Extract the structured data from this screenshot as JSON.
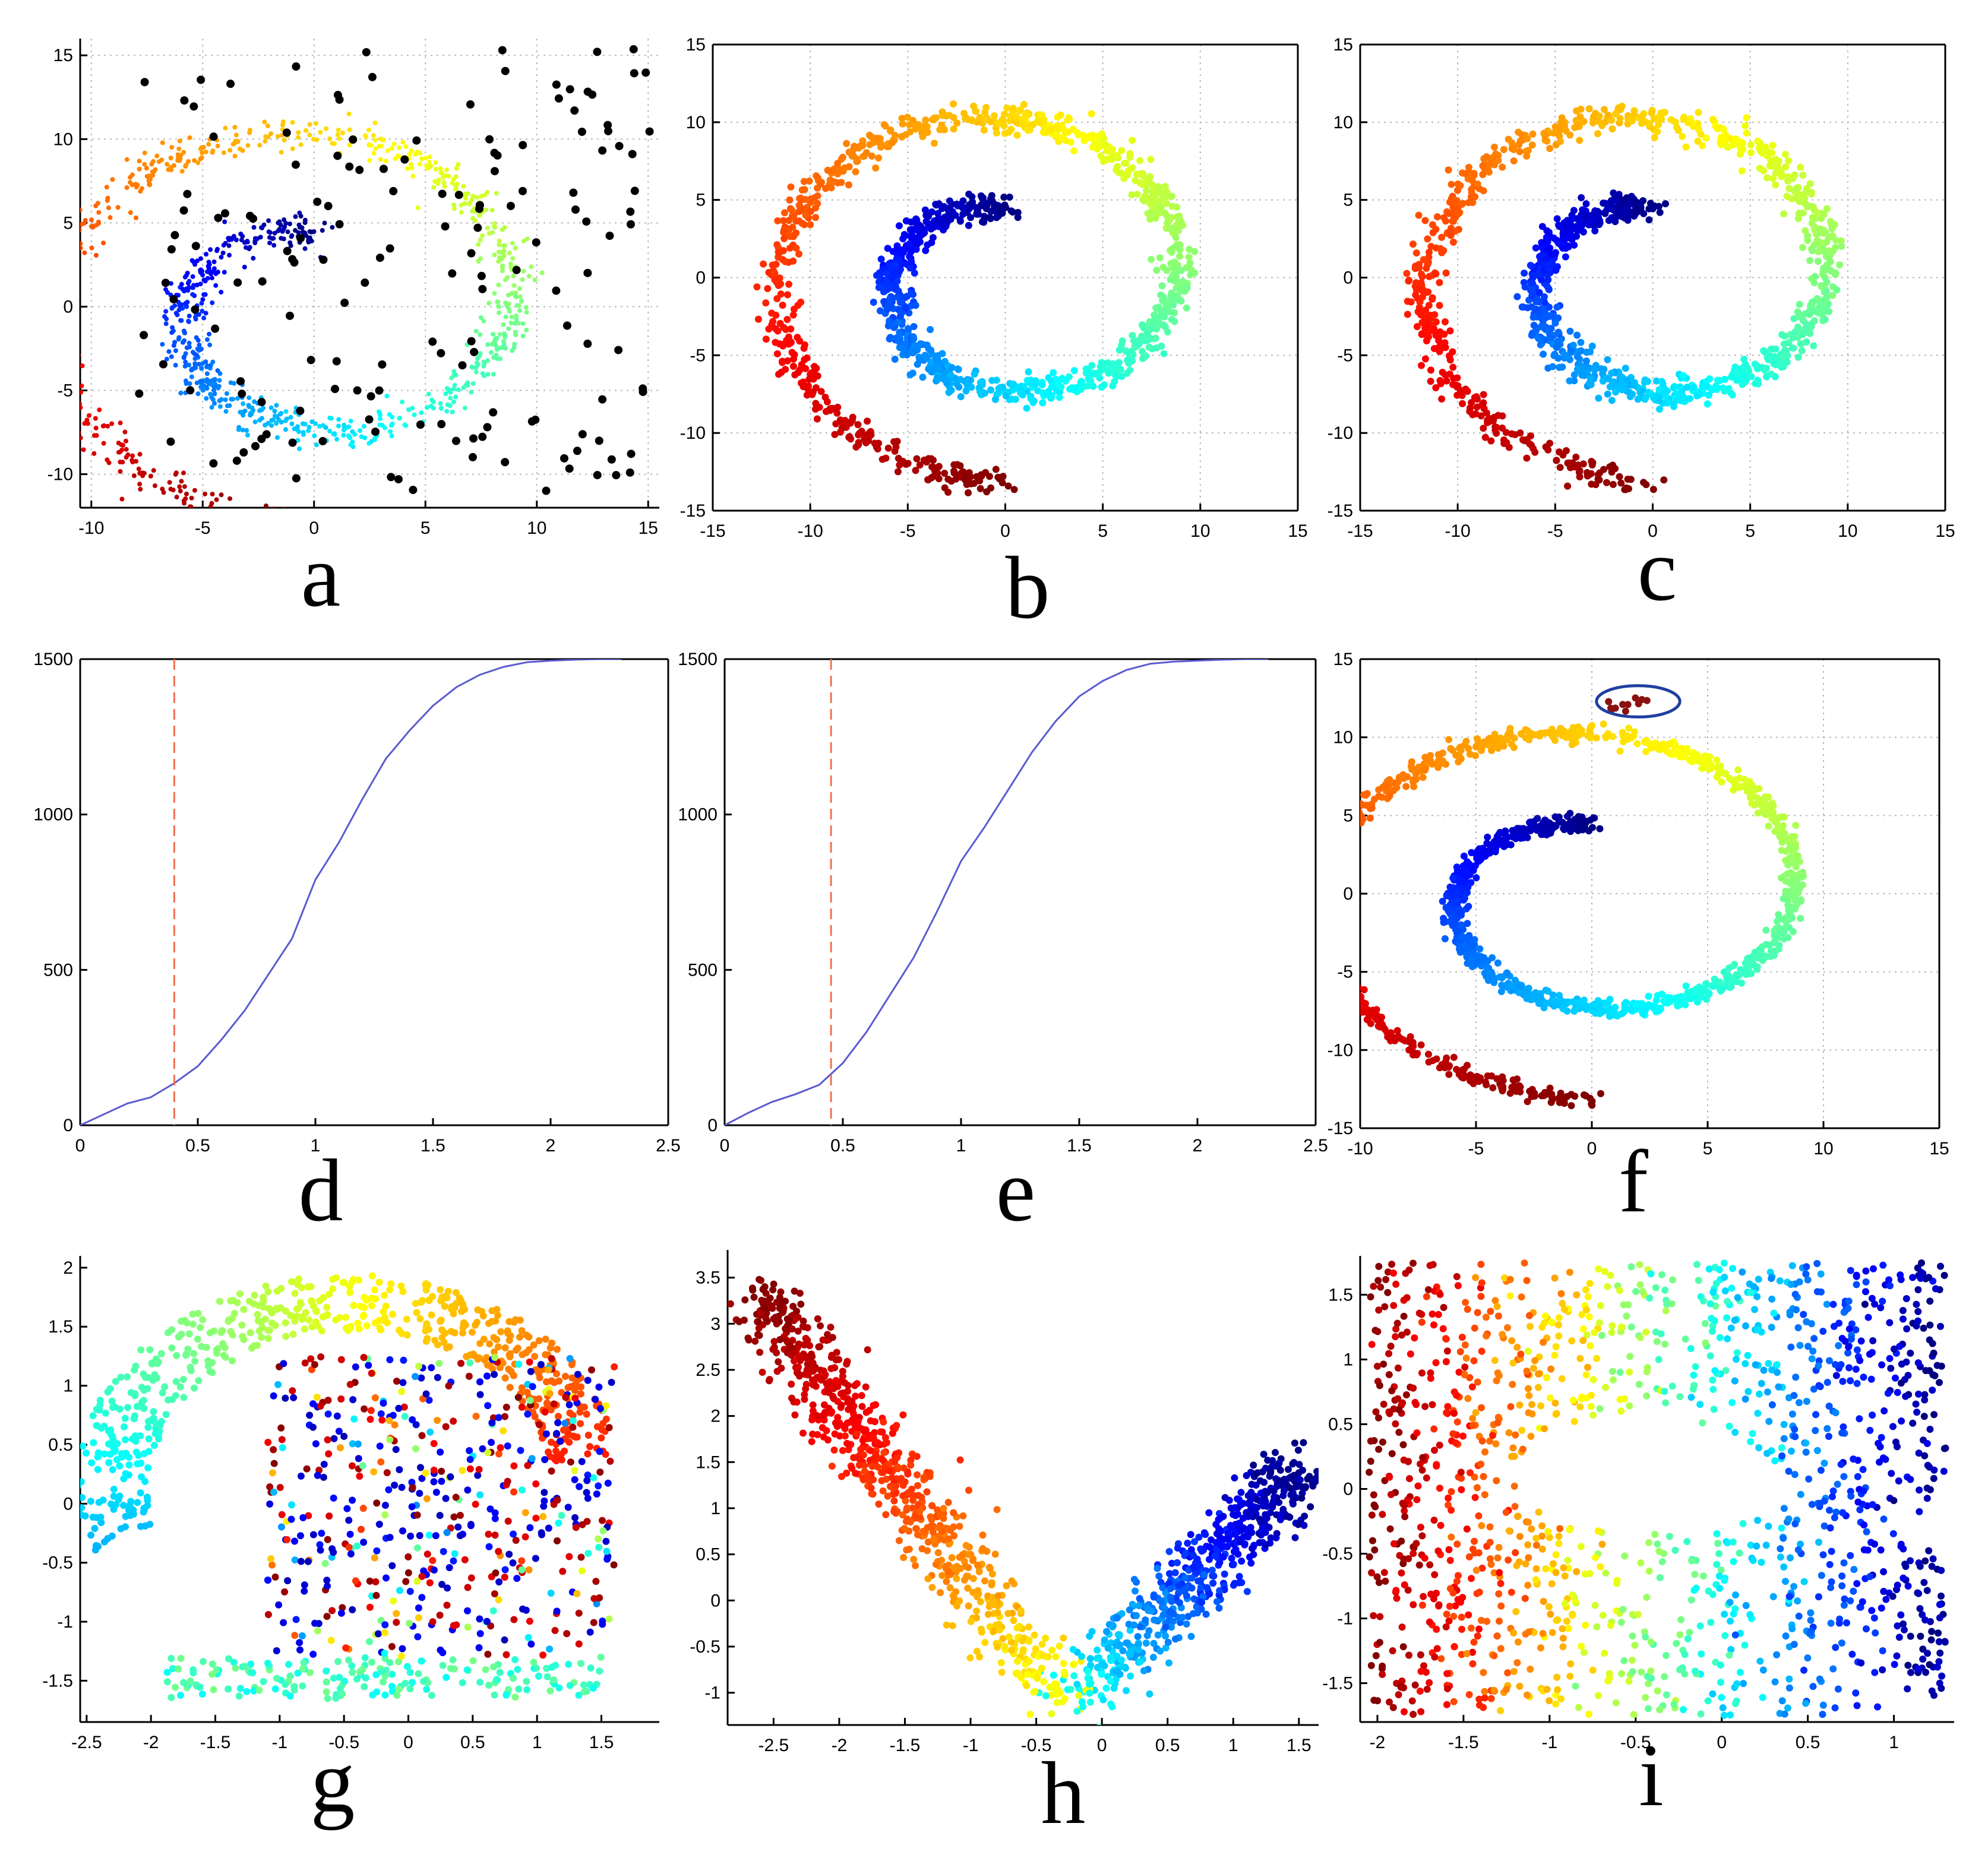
{
  "figure": {
    "panel_labels": [
      "a",
      "b",
      "c",
      "d",
      "e",
      "f",
      "g",
      "h",
      "i"
    ]
  },
  "chart_data": [
    {
      "id": "a",
      "type": "scatter",
      "title": "",
      "xlabel": "",
      "ylabel": "",
      "xlim": [
        -10.5,
        15.5
      ],
      "ylim": [
        -12,
        16
      ],
      "xticks": [
        -10,
        -5,
        0,
        5,
        10,
        15
      ],
      "yticks": [
        -10,
        -5,
        0,
        5,
        10,
        15
      ],
      "grid": true,
      "frame": "left-bottom",
      "series": [
        {
          "name": "swiss-roll points",
          "shape": "spiral",
          "t_range": [
            4.712,
            14.137
          ],
          "n": 1100,
          "noise": 0.5,
          "color_by": "t",
          "colormap": "jet"
        },
        {
          "name": "outliers",
          "color": "#000000",
          "n": 160,
          "marker_size": "large",
          "x_range": [
            -8,
            15.5
          ],
          "y_range": [
            -11,
            15.5
          ]
        }
      ]
    },
    {
      "id": "b",
      "type": "scatter",
      "title": "",
      "xlabel": "",
      "ylabel": "",
      "xlim": [
        -15,
        15
      ],
      "ylim": [
        -15,
        15
      ],
      "xticks": [
        -15,
        -10,
        -5,
        0,
        5,
        10,
        15
      ],
      "yticks": [
        -15,
        -10,
        -5,
        0,
        5,
        10,
        15
      ],
      "grid": true,
      "frame": "box",
      "series": [
        {
          "name": "denoised points",
          "shape": "spiral",
          "t_range": [
            4.712,
            14.137
          ],
          "n": 1300,
          "noise": 0.45,
          "color_by": "t",
          "colormap": "jet"
        }
      ]
    },
    {
      "id": "c",
      "type": "scatter",
      "title": "",
      "xlabel": "",
      "ylabel": "",
      "xlim": [
        -15,
        15
      ],
      "ylim": [
        -15,
        15
      ],
      "xticks": [
        -15,
        -10,
        -5,
        0,
        5,
        10,
        15
      ],
      "yticks": [
        -15,
        -10,
        -5,
        0,
        5,
        10,
        15
      ],
      "grid": true,
      "frame": "box",
      "series": [
        {
          "name": "denoised points",
          "shape": "spiral",
          "t_range": [
            4.712,
            14.137
          ],
          "n": 1300,
          "noise": 0.45,
          "color_by": "t",
          "colormap": "jet"
        }
      ]
    },
    {
      "id": "d",
      "type": "line",
      "title": "",
      "xlabel": "",
      "ylabel": "",
      "xlim": [
        0,
        2.5
      ],
      "ylim": [
        0,
        1500
      ],
      "xticks": [
        0,
        0.5,
        1,
        1.5,
        2,
        2.5
      ],
      "yticks": [
        0,
        500,
        1000,
        1500
      ],
      "xtick_labels": [
        "0",
        "0.5",
        "1",
        "1.5",
        "2",
        "2.5"
      ],
      "grid": false,
      "frame": "box",
      "series": [
        {
          "name": "cumulative count",
          "color": "#5a5ad0",
          "x": [
            0,
            0.1,
            0.2,
            0.3,
            0.4,
            0.5,
            0.6,
            0.7,
            0.8,
            0.9,
            1.0,
            1.1,
            1.2,
            1.3,
            1.4,
            1.5,
            1.6,
            1.7,
            1.8,
            1.9,
            2.0,
            2.1,
            2.2,
            2.3
          ],
          "y": [
            0,
            35,
            70,
            90,
            135,
            190,
            275,
            370,
            485,
            600,
            790,
            910,
            1050,
            1180,
            1270,
            1350,
            1410,
            1450,
            1475,
            1490,
            1495,
            1498,
            1500,
            1500
          ]
        }
      ],
      "threshold": {
        "x": 0.4,
        "color": "#f07050",
        "style": "dashed"
      }
    },
    {
      "id": "e",
      "type": "line",
      "title": "",
      "xlabel": "",
      "ylabel": "",
      "xlim": [
        0,
        2.5
      ],
      "ylim": [
        0,
        1500
      ],
      "xticks": [
        0,
        0.5,
        1,
        1.5,
        2,
        2.5
      ],
      "yticks": [
        0,
        500,
        1000,
        1500
      ],
      "grid": false,
      "frame": "box",
      "series": [
        {
          "name": "cumulative count",
          "color": "#5a5ad0",
          "x": [
            0,
            0.1,
            0.2,
            0.3,
            0.4,
            0.5,
            0.6,
            0.7,
            0.8,
            0.9,
            1.0,
            1.1,
            1.2,
            1.3,
            1.4,
            1.5,
            1.6,
            1.7,
            1.8,
            1.9,
            2.0,
            2.1,
            2.2,
            2.3
          ],
          "y": [
            0,
            40,
            75,
            100,
            130,
            200,
            300,
            420,
            540,
            690,
            850,
            960,
            1080,
            1200,
            1300,
            1380,
            1430,
            1465,
            1485,
            1492,
            1495,
            1498,
            1500,
            1500
          ]
        }
      ],
      "threshold": {
        "x": 0.45,
        "color": "#f07050",
        "style": "dashed"
      }
    },
    {
      "id": "f",
      "type": "scatter",
      "title": "",
      "xlabel": "",
      "ylabel": "",
      "xlim": [
        -10,
        15
      ],
      "ylim": [
        -15,
        15
      ],
      "xticks": [
        -10,
        -5,
        0,
        5,
        10,
        15
      ],
      "yticks": [
        -15,
        -10,
        -5,
        0,
        5,
        10,
        15
      ],
      "grid": true,
      "frame": "box",
      "series": [
        {
          "name": "smoothed points",
          "shape": "spiral",
          "t_range": [
            4.712,
            14.137
          ],
          "n": 1500,
          "noise": 0.25,
          "color_by": "t",
          "colormap": "jet"
        },
        {
          "name": "outlier cluster",
          "color": "#8b1010",
          "n": 12,
          "x_range": [
            0.5,
            2.5
          ],
          "y_range": [
            11.5,
            13
          ]
        }
      ],
      "annotation": {
        "shape": "ellipse",
        "color": "#2040a0",
        "center": [
          2,
          12.3
        ],
        "radii": [
          1.8,
          1.0
        ]
      }
    },
    {
      "id": "g",
      "type": "scatter",
      "title": "",
      "xlabel": "",
      "ylabel": "",
      "xlim": [
        -2.55,
        1.95
      ],
      "ylim": [
        -1.85,
        2.1
      ],
      "xticks": [
        -2.5,
        -2,
        -1.5,
        -1,
        -0.5,
        0,
        0.5,
        1,
        1.5
      ],
      "yticks": [
        -1.5,
        -1,
        -0.5,
        0,
        0.5,
        1,
        1.5,
        2
      ],
      "grid": false,
      "frame": "left-bottom",
      "series": [
        {
          "name": "outer arc",
          "n": 600,
          "color_by": "angle",
          "colormap": "jet"
        },
        {
          "name": "folded interior",
          "n": 520,
          "color": "mixed",
          "x_range": [
            -1.1,
            1.6
          ],
          "y_range": [
            -1.3,
            1.25
          ]
        }
      ]
    },
    {
      "id": "h",
      "type": "scatter",
      "title": "",
      "xlabel": "",
      "ylabel": "",
      "xlim": [
        -2.85,
        1.65
      ],
      "ylim": [
        -1.35,
        3.8
      ],
      "xticks": [
        -2.5,
        -2,
        -1.5,
        -1,
        -0.5,
        0,
        0.5,
        1,
        1.5
      ],
      "yticks": [
        -1,
        -0.5,
        0,
        0.5,
        1,
        1.5,
        2,
        2.5,
        3,
        3.5
      ],
      "grid": false,
      "frame": "left-bottom",
      "series": [
        {
          "name": "v-shaped embedding",
          "n": 1300,
          "color_by": "position",
          "colormap": "jet",
          "vertex": [
            -0.3,
            -1.2
          ],
          "left_end": [
            -2.6,
            3.3
          ],
          "right_end": [
            1.5,
            1.4
          ]
        }
      ]
    },
    {
      "id": "i",
      "type": "scatter",
      "title": "",
      "xlabel": "",
      "ylabel": "",
      "xlim": [
        -2.1,
        1.35
      ],
      "ylim": [
        -1.8,
        1.8
      ],
      "xticks": [
        -2,
        -1.5,
        -1,
        -0.5,
        0,
        0.5,
        1
      ],
      "yticks": [
        -1.5,
        -1,
        -0.5,
        0,
        0.5,
        1,
        1.5
      ],
      "grid": false,
      "frame": "left-bottom",
      "series": [
        {
          "name": "unrolled embedding with hole",
          "n": 1400,
          "color_by": "x",
          "colormap": "jet_reversed",
          "hole": {
            "center": [
              -0.45,
              0.1
            ],
            "radii": [
              0.75,
              0.45
            ]
          }
        }
      ]
    }
  ]
}
